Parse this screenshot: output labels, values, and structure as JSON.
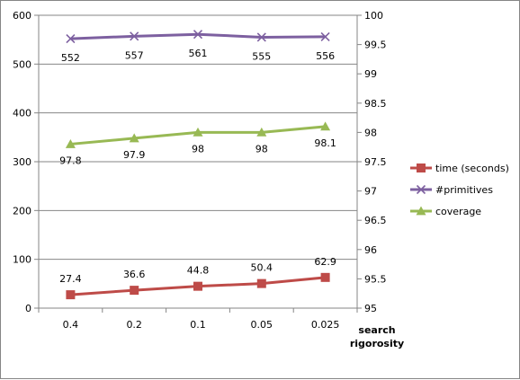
{
  "chart_data": {
    "type": "line",
    "categories": [
      "0.4",
      "0.2",
      "0.1",
      "0.05",
      "0.025"
    ],
    "xlabel": "search rigorosity",
    "ylim_left": [
      0,
      600
    ],
    "yticks_left": [
      0,
      100,
      200,
      300,
      400,
      500,
      600
    ],
    "ylim_right": [
      95,
      100
    ],
    "yticks_right": [
      "95",
      "95.5",
      "96",
      "96.5",
      "97",
      "97.5",
      "98",
      "98.5",
      "99",
      "99.5",
      "100"
    ],
    "grid": "horizontal",
    "legend_position": "right",
    "series": [
      {
        "name": "time (seconds)",
        "axis": "left",
        "values": [
          27.4,
          36.6,
          44.8,
          50.4,
          62.9
        ],
        "labels": [
          "27.4",
          "36.6",
          "44.8",
          "50.4",
          "62.9"
        ],
        "color": "#BE4B48",
        "marker": "square"
      },
      {
        "name": "#primitives",
        "axis": "left",
        "values": [
          552,
          557,
          561,
          555,
          556
        ],
        "labels": [
          "552",
          "557",
          "561",
          "555",
          "556"
        ],
        "color": "#7D60A0",
        "marker": "x"
      },
      {
        "name": "coverage",
        "axis": "right",
        "values": [
          97.8,
          97.9,
          98,
          98,
          98.1
        ],
        "labels": [
          "97.8",
          "97.9",
          "98",
          "98",
          "98.1"
        ],
        "color": "#98B954",
        "marker": "triangle"
      }
    ]
  }
}
